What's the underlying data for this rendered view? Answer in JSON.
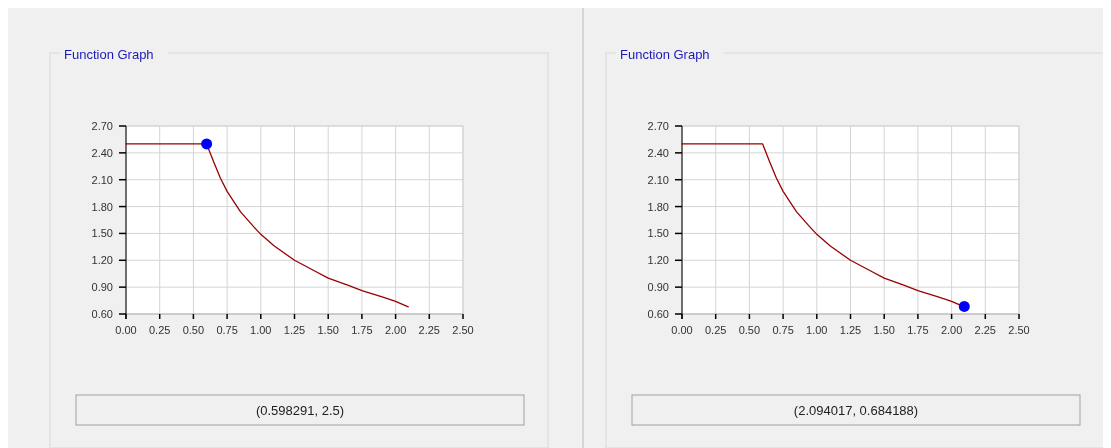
{
  "chart_data": [
    {
      "type": "line",
      "title": "Function Graph",
      "xlim": [
        0,
        2.5
      ],
      "ylim": [
        0.6,
        2.7
      ],
      "xticks": [
        {
          "value": 0,
          "label": "0.00"
        },
        {
          "value": 0.25,
          "label": "0.25"
        },
        {
          "value": 0.5,
          "label": "0.50"
        },
        {
          "value": 0.75,
          "label": "0.75"
        },
        {
          "value": 1,
          "label": "1.00"
        },
        {
          "value": 1.25,
          "label": "1.25"
        },
        {
          "value": 1.5,
          "label": "1.50"
        },
        {
          "value": 1.75,
          "label": "1.75"
        },
        {
          "value": 2,
          "label": "2.00"
        },
        {
          "value": 2.25,
          "label": "2.25"
        },
        {
          "value": 2.5,
          "label": "2.50"
        }
      ],
      "yticks": [
        {
          "value": 0.6,
          "label": "0.60"
        },
        {
          "value": 0.9,
          "label": "0.90"
        },
        {
          "value": 1.2,
          "label": "1.20"
        },
        {
          "value": 1.5,
          "label": "1.50"
        },
        {
          "value": 1.8,
          "label": "1.80"
        },
        {
          "value": 2.1,
          "label": "2.10"
        },
        {
          "value": 2.4,
          "label": "2.40"
        },
        {
          "value": 2.7,
          "label": "2.70"
        }
      ],
      "grid": true,
      "annotations": [
        "(0.598291, 2.5)"
      ],
      "series": [
        {
          "color": "#990000",
          "x": [
            0,
            0.598,
            0.65,
            0.7,
            0.75,
            0.85,
            0.95,
            1.0,
            1.1,
            1.25,
            1.4,
            1.5,
            1.65,
            1.75,
            1.9,
            2.0,
            2.094
          ],
          "values": [
            2.5,
            2.5,
            2.3,
            2.12,
            1.97,
            1.74,
            1.57,
            1.49,
            1.36,
            1.2,
            1.08,
            1.0,
            0.92,
            0.86,
            0.79,
            0.74,
            0.68
          ]
        },
        {
          "type": "scatter",
          "color": "#0000ff",
          "marker": "circle",
          "x": [
            0.598291
          ],
          "values": [
            2.5
          ]
        }
      ]
    },
    {
      "type": "line",
      "title": "Function Graph",
      "xlim": [
        0,
        2.5
      ],
      "ylim": [
        0.6,
        2.7
      ],
      "xticks": [
        {
          "value": 0,
          "label": "0.00"
        },
        {
          "value": 0.25,
          "label": "0.25"
        },
        {
          "value": 0.5,
          "label": "0.50"
        },
        {
          "value": 0.75,
          "label": "0.75"
        },
        {
          "value": 1,
          "label": "1.00"
        },
        {
          "value": 1.25,
          "label": "1.25"
        },
        {
          "value": 1.5,
          "label": "1.50"
        },
        {
          "value": 1.75,
          "label": "1.75"
        },
        {
          "value": 2,
          "label": "2.00"
        },
        {
          "value": 2.25,
          "label": "2.25"
        },
        {
          "value": 2.5,
          "label": "2.50"
        }
      ],
      "yticks": [
        {
          "value": 0.6,
          "label": "0.60"
        },
        {
          "value": 0.9,
          "label": "0.90"
        },
        {
          "value": 1.2,
          "label": "1.20"
        },
        {
          "value": 1.5,
          "label": "1.50"
        },
        {
          "value": 1.8,
          "label": "1.80"
        },
        {
          "value": 2.1,
          "label": "2.10"
        },
        {
          "value": 2.4,
          "label": "2.40"
        },
        {
          "value": 2.7,
          "label": "2.70"
        }
      ],
      "grid": true,
      "annotations": [
        "(2.094017, 0.684188)"
      ],
      "series": [
        {
          "color": "#990000",
          "x": [
            0,
            0.598,
            0.65,
            0.7,
            0.75,
            0.85,
            0.95,
            1.0,
            1.1,
            1.25,
            1.4,
            1.5,
            1.65,
            1.75,
            1.9,
            2.0,
            2.094
          ],
          "values": [
            2.5,
            2.5,
            2.3,
            2.12,
            1.97,
            1.74,
            1.57,
            1.49,
            1.36,
            1.2,
            1.08,
            1.0,
            0.92,
            0.86,
            0.79,
            0.74,
            0.68
          ]
        },
        {
          "type": "scatter",
          "color": "#0000ff",
          "marker": "circle",
          "x": [
            2.094017
          ],
          "values": [
            0.684188
          ]
        }
      ]
    }
  ]
}
